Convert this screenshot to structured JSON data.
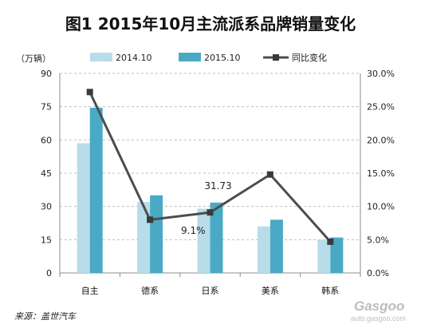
{
  "title": "图1  2015年10月主流派系品牌销量变化",
  "source": "来源：盖世汽车",
  "watermark": "Gasgoo",
  "watermark_sub": "auto.gasgoo.com",
  "colors": {
    "series_2014": "#b8dde8",
    "series_2015": "#4aaac5",
    "line": "#4d4d4d",
    "grid": "#bfbfbf"
  },
  "chart_data": {
    "type": "bar",
    "categories": [
      "自主",
      "德系",
      "日系",
      "美系",
      "韩系"
    ],
    "y_unit_label": "（万辆）",
    "ylim": [
      0,
      90
    ],
    "yticks": [
      0,
      15,
      30,
      45,
      60,
      75,
      90
    ],
    "y2lim": [
      0,
      0.3
    ],
    "y2ticks": [
      "0.0%",
      "5.0%",
      "10.0%",
      "15.0%",
      "20.0%",
      "25.0%",
      "30.0%"
    ],
    "series": [
      {
        "name": "2014.10",
        "type": "bar",
        "values": [
          58.5,
          32.0,
          29.0,
          21.0,
          15.0
        ]
      },
      {
        "name": "2015.10",
        "type": "bar",
        "values": [
          74.5,
          35.0,
          31.73,
          24.0,
          16.0
        ]
      },
      {
        "name": "同比变化",
        "type": "line",
        "axis": "right",
        "values": [
          0.272,
          0.08,
          0.091,
          0.148,
          0.047
        ]
      }
    ],
    "data_labels": [
      {
        "series": "2015.10",
        "category": "日系",
        "text": "31.73"
      },
      {
        "series": "同比变化",
        "category": "日系",
        "text": "9.1%"
      }
    ],
    "legend_position": "top",
    "grid": "dashed-horizontal"
  }
}
